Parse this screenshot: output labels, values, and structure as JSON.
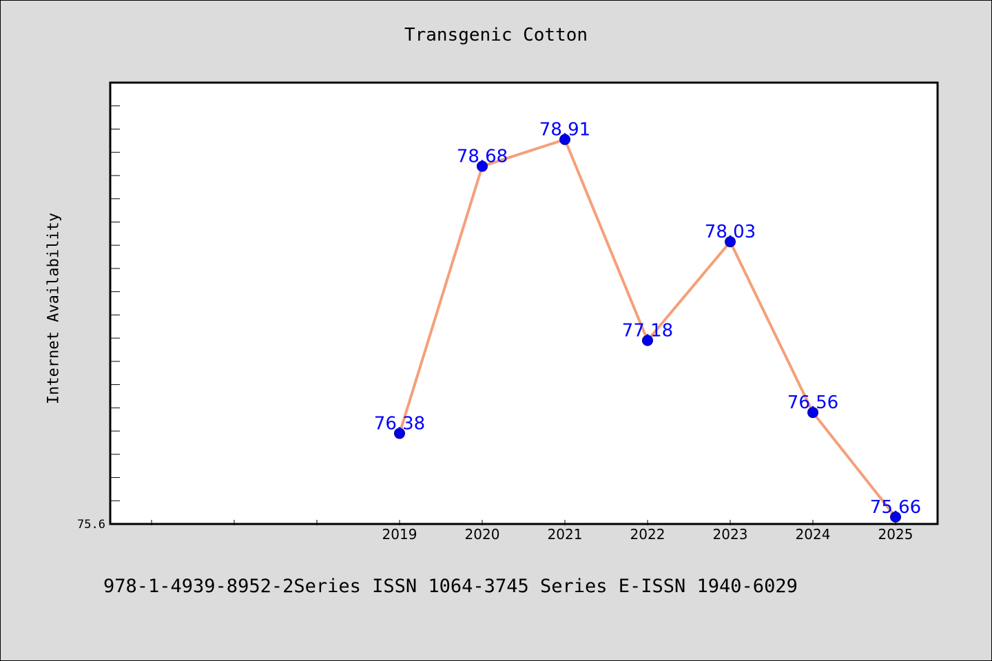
{
  "chart_data": {
    "type": "line",
    "title": "Transgenic Cotton",
    "xlabel": "",
    "ylabel": "Internet Availability",
    "categories": [
      "2019",
      "2020",
      "2021",
      "2022",
      "2023",
      "2024",
      "2025"
    ],
    "series": [
      {
        "values": [
          76.38,
          78.68,
          78.91,
          77.18,
          78.03,
          76.56,
          75.66
        ]
      }
    ],
    "value_labels": [
      "76.38",
      "78.68",
      "78.91",
      "77.18",
      "78.03",
      "76.56",
      "75.66"
    ],
    "ylim": [
      75.6,
      79.4
    ],
    "y_tick_labels": [
      "75.6"
    ],
    "grid": false,
    "colors": {
      "line": "#f4a07a",
      "marker": "#0000ee",
      "label": "#0000ff",
      "background": "#dcdcdc",
      "plot_bg": "#ffffff"
    }
  },
  "footer": "978-1-4939-8952-2Series ISSN 1064-3745 Series E-ISSN 1940-6029"
}
